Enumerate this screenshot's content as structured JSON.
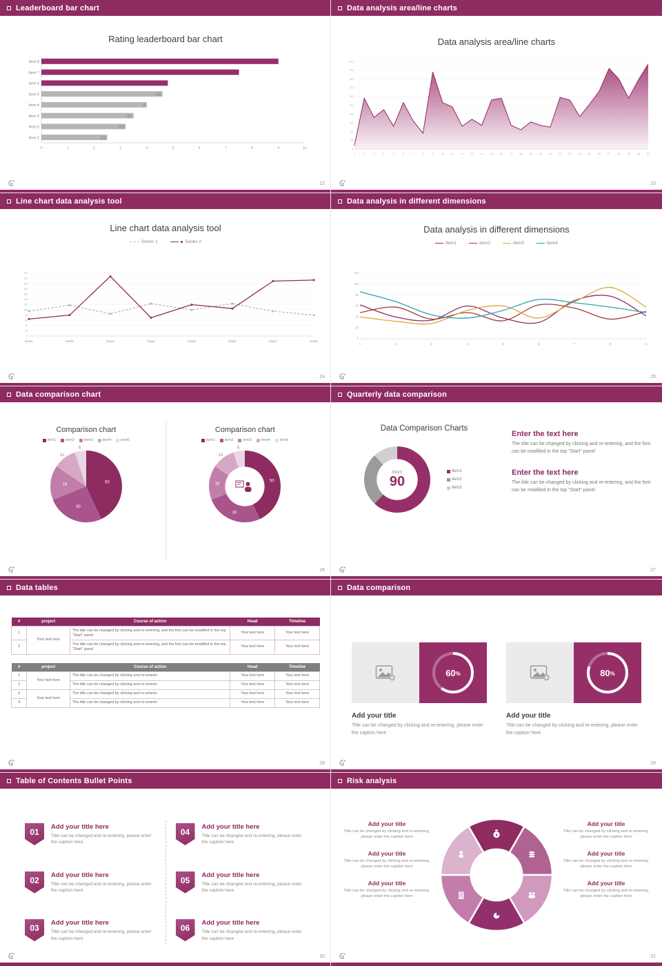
{
  "theme": {
    "maroon": "#8e2b60",
    "purple_bar": "#962f68",
    "gray_bar": "#b5b5b5"
  },
  "slides": [
    {
      "header": "Leaderboard bar chart",
      "page": "22",
      "title": "Rating leaderboard bar chart",
      "chart": {
        "type": "hbar",
        "xmax": 10,
        "categories": [
          "Item 8",
          "Item 7",
          "Item 6",
          "Item 5",
          "Item 4",
          "Item 3",
          "Item 2",
          "Item 1"
        ],
        "values": [
          9,
          7.5,
          4.8,
          4.6,
          4,
          3.5,
          3.2,
          2.5
        ],
        "colors": [
          "#962f68",
          "#962f68",
          "#962f68",
          "#b5b5b5",
          "#b5b5b5",
          "#b5b5b5",
          "#b5b5b5",
          "#b5b5b5"
        ],
        "value_labels": [
          "",
          "",
          "",
          "4.6",
          "4",
          "3.5",
          "3.2",
          "2.5"
        ],
        "x_ticks": [
          0,
          1,
          2,
          3,
          4,
          5,
          6,
          7,
          8,
          9,
          10
        ]
      }
    },
    {
      "header": "Data analysis area/line charts",
      "page": "23",
      "title": "Data analysis area/line charts",
      "chart": {
        "type": "area",
        "ymax": 100,
        "color": "#a03672",
        "stroke": "#8e2b60",
        "y_ticks": [
          0,
          10,
          20,
          30,
          40,
          50,
          60,
          70,
          80,
          90,
          100
        ],
        "x_labels": [
          "1",
          "2",
          "3",
          "4",
          "5",
          "6",
          "7",
          "8",
          "9",
          "10",
          "11",
          "12",
          "13",
          "14",
          "15",
          "16",
          "17",
          "18",
          "19",
          "20",
          "21",
          "22",
          "23",
          "24",
          "25",
          "26",
          "27",
          "28",
          "29",
          "30",
          "31"
        ],
        "values": [
          4,
          58,
          36,
          45,
          26,
          53,
          32,
          18,
          88,
          53,
          48,
          26,
          34,
          27,
          56,
          58,
          27,
          22,
          31,
          27,
          25,
          59,
          56,
          37,
          51,
          66,
          92,
          80,
          58,
          79,
          97
        ]
      }
    },
    {
      "header": "Line chart data analysis tool",
      "page": "24",
      "title": "Line chart data analysis tool",
      "chart": {
        "type": "line",
        "ymax": 240,
        "y_ticks": [
          0,
          20,
          40,
          60,
          80,
          100,
          120,
          140,
          160,
          180,
          200,
          220,
          240
        ],
        "x_labels": [
          "Data1",
          "Data2",
          "Data3",
          "Data4",
          "Data5",
          "Data6",
          "Data7",
          "Data8"
        ],
        "series": [
          {
            "name": "Series 1",
            "color": "#b5b5b5",
            "dash": "3 2.5",
            "marker": true,
            "values": [
              95,
              118,
              85,
              124,
              100,
              124,
              95,
              80
            ]
          },
          {
            "name": "Series 2",
            "color": "#8e2b60",
            "dash": "",
            "marker": true,
            "values": [
              65,
              80,
              228,
              70,
              120,
              105,
              210,
              214
            ]
          }
        ]
      }
    },
    {
      "header": "Data analysis in different dimensions",
      "page": "25",
      "title": "Data analysis in different dimensions",
      "chart": {
        "type": "line",
        "smooth": true,
        "ymax": 120,
        "y_ticks": [
          0,
          20,
          40,
          60,
          80,
          100,
          120
        ],
        "x_labels": [
          "1",
          "2",
          "3",
          "4",
          "5",
          "6",
          "7",
          "8",
          "9"
        ],
        "series": [
          {
            "name": "item1",
            "color": "#8e2b60",
            "values": [
              62,
              40,
              34,
              60,
              38,
              30,
              70,
              78,
              42
            ]
          },
          {
            "name": "item2",
            "color": "#a03b3b",
            "values": [
              48,
              58,
              36,
              48,
              33,
              62,
              56,
              36,
              50
            ]
          },
          {
            "name": "item3",
            "color": "#e2a33c",
            "values": [
              40,
              32,
              28,
              52,
              60,
              38,
              68,
              94,
              58
            ]
          },
          {
            "name": "item4",
            "color": "#2ba3b4",
            "values": [
              86,
              68,
              44,
              38,
              52,
              72,
              66,
              58,
              48
            ]
          }
        ]
      }
    },
    {
      "header": "Data comparison chart",
      "page": "26",
      "left": {
        "title": "Comparison chart",
        "legend": [
          "item1",
          "item2",
          "item3",
          "item4",
          "item5"
        ],
        "chart": {
          "type": "pie",
          "inner": 0,
          "values": [
            50,
            30,
            18,
            12,
            6
          ],
          "colors": [
            "#8e2b60",
            "#a9548b",
            "#c07fa9",
            "#d6a8c6",
            "#ecd6e3"
          ]
        }
      },
      "right": {
        "title": "Comparison chart",
        "legend": [
          "item1",
          "item2",
          "item3",
          "item4",
          "item5"
        ],
        "chart": {
          "type": "pie",
          "inner": 0.55,
          "center_icon": "presenter",
          "values": [
            50,
            30,
            18,
            12,
            6
          ],
          "colors": [
            "#8e2b60",
            "#a9548b",
            "#c07fa9",
            "#d6a8c6",
            "#ecd6e3"
          ]
        }
      }
    },
    {
      "header": "Quarterly data comparison",
      "page": "27",
      "title": "Data Comparison Charts",
      "center_label": "days",
      "center_value": "90",
      "legend": [
        "item1",
        "item2",
        "item3"
      ],
      "chart": {
        "type": "pie",
        "inner": 0.62,
        "labels": false,
        "values": [
          62,
          26,
          12
        ],
        "colors": [
          "#962f68",
          "#9b9b9b",
          "#d0d0d0"
        ]
      },
      "blocks": [
        {
          "title": "Enter the text here",
          "body": "The title can be changed by clicking and re-entering, and the font can be modified in the top \"Start\" panel"
        },
        {
          "title": "Enter the text here",
          "body": "The title can be changed by clicking and re-entering, and the font can be modified in the top \"Start\" panel"
        }
      ]
    },
    {
      "header": "Data tables",
      "page": "28",
      "table1": {
        "header_bg": "#8e2b60",
        "border": "#d9bed0",
        "columns": [
          "#",
          "project",
          "Course of action",
          "Head",
          "Timeline"
        ],
        "col_widths": [
          "5%",
          "14%",
          "52%",
          "14.5%",
          "14.5%"
        ],
        "rows": [
          {
            "num": "1",
            "project": "Your text here",
            "project_rowspan": 2,
            "course": "The title can be changed by clicking and re-entering, and the font can be modified in the top \"Start\" panel",
            "head": "Your text here",
            "timeline": "Your text here"
          },
          {
            "num": "2",
            "course": "The title can be changed by clicking and re-entering, and the font can be modified in the top \"Start\" panel",
            "head": "Your text here",
            "timeline": "Your text here"
          }
        ]
      },
      "table2": {
        "header_bg": "#7f7f7f",
        "border": "#cccccc",
        "columns": [
          "#",
          "project",
          "Course of action",
          "Head",
          "Timeline"
        ],
        "col_widths": [
          "5%",
          "14%",
          "52%",
          "14.5%",
          "14.5%"
        ],
        "rows": [
          {
            "num": "1",
            "project": "Your text here",
            "project_rowspan": 2,
            "course": "The title can be changed by clicking and re-enterin",
            "head": "Your text here",
            "timeline": "Your text here"
          },
          {
            "num": "2",
            "course": "The title can be changed by clicking and re-enterin",
            "head": "Your text here",
            "timeline": "Your text here"
          },
          {
            "num": "3",
            "project": "Your text here",
            "project_rowspan": 2,
            "course": "The title can be changed by clicking and re-enterin",
            "head": "Your text here",
            "timeline": "Your text here"
          },
          {
            "num": "4",
            "course": "The title can be changed by clicking and re-enterin",
            "head": "Your text here",
            "timeline": "Your text here"
          }
        ]
      }
    },
    {
      "header": "Data comparison",
      "page": "29",
      "percent_suffix": "%",
      "cards": [
        {
          "percent_text": "60",
          "ring": {
            "type": "ring",
            "percent": 60
          },
          "title": "Add your title",
          "caption": "Title can be changed by clicking and re-entering, please enter the caption here"
        },
        {
          "percent_text": "80",
          "ring": {
            "type": "ring",
            "percent": 80
          },
          "title": "Add your title",
          "caption": "Title can be changed by clicking and re-entering, please enter the caption here"
        }
      ]
    },
    {
      "header": "Table of Contents Bullet Points",
      "page": "30",
      "items": [
        {
          "num": "01",
          "title": "Add your title here",
          "caption": "Title can be changed and re-entering, please enter the caption here"
        },
        {
          "num": "02",
          "title": "Add your title here",
          "caption": "Title can be changed and re-entering, please enter the caption here"
        },
        {
          "num": "03",
          "title": "Add your title here",
          "caption": "Title can be changed and re-entering, please enter the caption here"
        },
        {
          "num": "04",
          "title": "Add your title here",
          "caption": "Title can be changed and re-entering, please enter the caption here"
        },
        {
          "num": "05",
          "title": "Add your title here",
          "caption": "Title can be changed and re-entering, please enter the caption here"
        },
        {
          "num": "06",
          "title": "Add your title here",
          "caption": "Title can be changed and re-entering, please enter the caption here"
        }
      ]
    },
    {
      "header": "Risk analysis",
      "page": "31",
      "wheel": {
        "type": "wheel",
        "inner": 0.46,
        "colors": [
          "#8e2b60",
          "#b06292",
          "#cf9abd",
          "#93306b",
          "#c27dab",
          "#dbb3cd"
        ],
        "icons": [
          "money-bag",
          "coins",
          "people",
          "pie",
          "building",
          "person"
        ]
      },
      "left_items": [
        {
          "title": "Add your title",
          "caption": "Title can be changed by clicking and re-entering, please enter the caption here"
        },
        {
          "title": "Add your title",
          "caption": "Title can be changed by clicking and re-entering, please enter the caption here"
        },
        {
          "title": "Add your title",
          "caption": "Title can be changed by clicking and re-entering, please enter the caption here"
        }
      ],
      "right_items": [
        {
          "title": "Add your title",
          "caption": "Title can be changed by clicking and re-entering, please enter the caption here"
        },
        {
          "title": "Add your title",
          "caption": "Title can be changed by clicking and re-entering, please enter the caption here"
        },
        {
          "title": "Add your title",
          "caption": "Title can be changed by clicking and re-entering, please enter the caption here"
        }
      ]
    }
  ]
}
